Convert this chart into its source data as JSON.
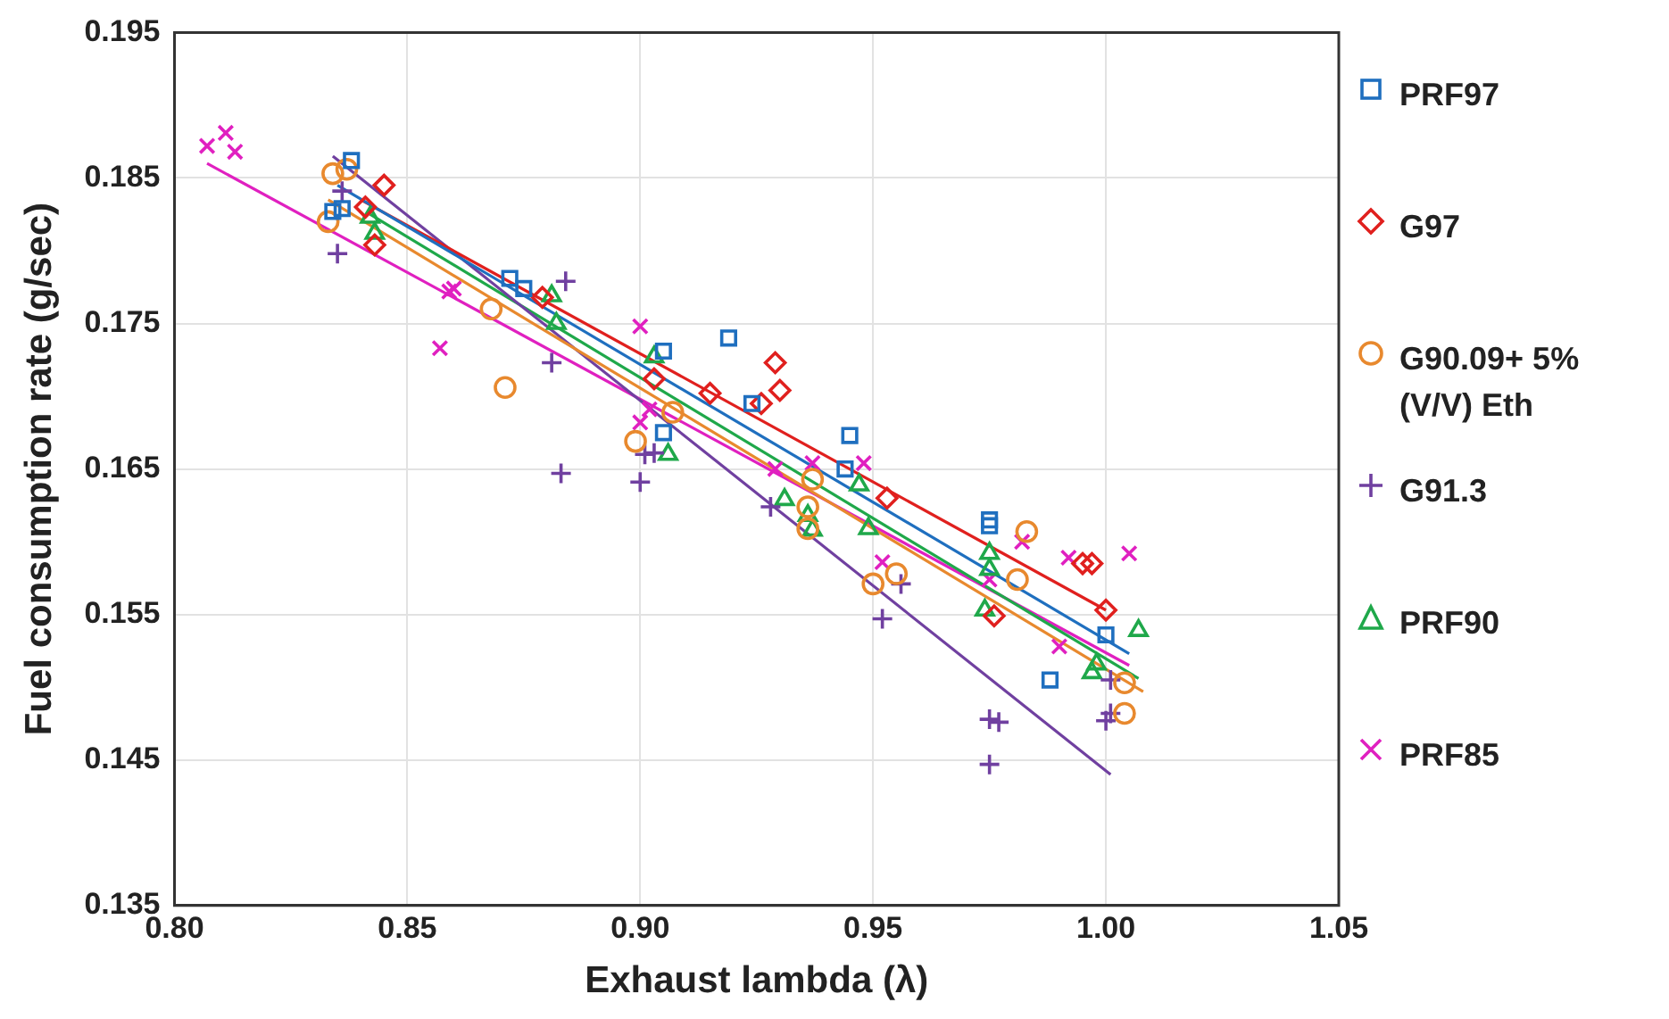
{
  "chart_data": {
    "type": "scatter",
    "xlabel": "Exhaust lambda (λ)",
    "ylabel": "Fuel consumption rate (g/sec)",
    "xlim": [
      0.8,
      1.05
    ],
    "xticks": [
      {
        "value": 0.8,
        "label": "0.80"
      },
      {
        "value": 0.85,
        "label": "0.85"
      },
      {
        "value": 0.9,
        "label": "0.90"
      },
      {
        "value": 0.95,
        "label": "0.95"
      },
      {
        "value": 1.0,
        "label": "1.00"
      },
      {
        "value": 1.05,
        "label": "1.05"
      }
    ],
    "ylim": [
      0.135,
      0.195
    ],
    "yticks": [
      0.135,
      0.145,
      0.155,
      0.165,
      0.175,
      0.185,
      0.195
    ],
    "grid": true,
    "legend": "right",
    "series": [
      {
        "name": "PRF97",
        "color": "#1f6fbf",
        "marker": "square",
        "x": [
          0.838,
          0.836,
          0.834,
          0.872,
          0.875,
          0.905,
          0.919,
          0.924,
          0.905,
          0.945,
          0.944,
          0.975,
          0.975,
          1.0,
          0.988
        ],
        "values": [
          0.1862,
          0.1829,
          0.1827,
          0.1781,
          0.1774,
          0.1731,
          0.174,
          0.1695,
          0.1675,
          0.1673,
          0.165,
          0.1615,
          0.1611,
          0.1536,
          0.1505
        ]
      },
      {
        "name": "G97",
        "color": "#e0201e",
        "marker": "diamond",
        "x": [
          0.845,
          0.841,
          0.843,
          0.879,
          0.903,
          0.915,
          0.929,
          0.93,
          0.926,
          0.953,
          0.976,
          0.995,
          0.997,
          1.0
        ],
        "values": [
          0.1845,
          0.183,
          0.1804,
          0.1768,
          0.1712,
          0.1702,
          0.1723,
          0.1704,
          0.1695,
          0.163,
          0.1549,
          0.1585,
          0.1585,
          0.1553
        ]
      },
      {
        "name": "G90.09+ 5%(V/V) Eth",
        "color": "#e8892e",
        "marker": "circle",
        "x": [
          0.834,
          0.837,
          0.833,
          0.868,
          0.871,
          0.899,
          0.907,
          0.937,
          0.936,
          0.936,
          0.95,
          0.955,
          0.983,
          0.981,
          1.004,
          1.004
        ],
        "values": [
          0.1853,
          0.1856,
          0.182,
          0.176,
          0.1706,
          0.1669,
          0.1689,
          0.1643,
          0.1624,
          0.1609,
          0.1571,
          0.1578,
          0.1607,
          0.1574,
          0.1503,
          0.1482
        ]
      },
      {
        "name": "G91.3",
        "color": "#7040a0",
        "marker": "cross",
        "x": [
          0.835,
          0.836,
          0.884,
          0.881,
          0.883,
          0.9,
          0.901,
          0.903,
          0.928,
          0.956,
          0.952,
          0.975,
          0.977,
          0.975,
          1.0,
          1.001,
          1.001
        ],
        "values": [
          0.1798,
          0.1841,
          0.1779,
          0.1723,
          0.1647,
          0.1641,
          0.166,
          0.1661,
          0.1624,
          0.1571,
          0.1547,
          0.1478,
          0.1476,
          0.1447,
          0.1477,
          0.1482,
          0.1505
        ]
      },
      {
        "name": "PRF90",
        "color": "#1fa84a",
        "marker": "triangle",
        "x": [
          0.842,
          0.843,
          0.881,
          0.882,
          0.903,
          0.906,
          0.931,
          0.936,
          0.937,
          0.947,
          0.949,
          0.975,
          0.975,
          0.974,
          0.998,
          0.997,
          1.007
        ],
        "values": [
          0.1823,
          0.1812,
          0.1769,
          0.175,
          0.1727,
          0.166,
          0.1629,
          0.1618,
          0.1608,
          0.1639,
          0.1609,
          0.1592,
          0.1581,
          0.1553,
          0.1516,
          0.151,
          0.1539
        ]
      },
      {
        "name": "PRF85",
        "color": "#e020c0",
        "marker": "x",
        "x": [
          0.807,
          0.811,
          0.813,
          0.86,
          0.859,
          0.857,
          0.9,
          0.9,
          0.902,
          0.929,
          0.937,
          0.948,
          0.952,
          0.975,
          0.982,
          0.992,
          0.99,
          1.005
        ],
        "values": [
          0.1872,
          0.1881,
          0.1868,
          0.1774,
          0.1772,
          0.1733,
          0.1748,
          0.1682,
          0.1691,
          0.165,
          0.1654,
          0.1654,
          0.1586,
          0.1574,
          0.16,
          0.1589,
          0.1528,
          0.1592
        ]
      },
      {
        "type": "line",
        "color": "#1f6fbf",
        "marker": "none",
        "x": [
          0.835,
          1.005
        ],
        "values": [
          0.1845,
          0.1523
        ]
      },
      {
        "type": "line",
        "color": "#e0201e",
        "marker": "none",
        "x": [
          0.84,
          1.0
        ],
        "values": [
          0.1835,
          0.1553
        ]
      },
      {
        "type": "line",
        "color": "#e8892e",
        "marker": "none",
        "x": [
          0.833,
          1.008
        ],
        "values": [
          0.1835,
          0.1497
        ]
      },
      {
        "type": "line",
        "color": "#7040a0",
        "marker": "none",
        "x": [
          0.834,
          1.001
        ],
        "values": [
          0.1865,
          0.144
        ]
      },
      {
        "type": "line",
        "color": "#1fa84a",
        "marker": "none",
        "x": [
          0.842,
          1.007
        ],
        "values": [
          0.1825,
          0.1506
        ]
      },
      {
        "type": "line",
        "color": "#e020c0",
        "marker": "none",
        "x": [
          0.807,
          1.005
        ],
        "values": [
          0.186,
          0.1515
        ]
      }
    ]
  }
}
